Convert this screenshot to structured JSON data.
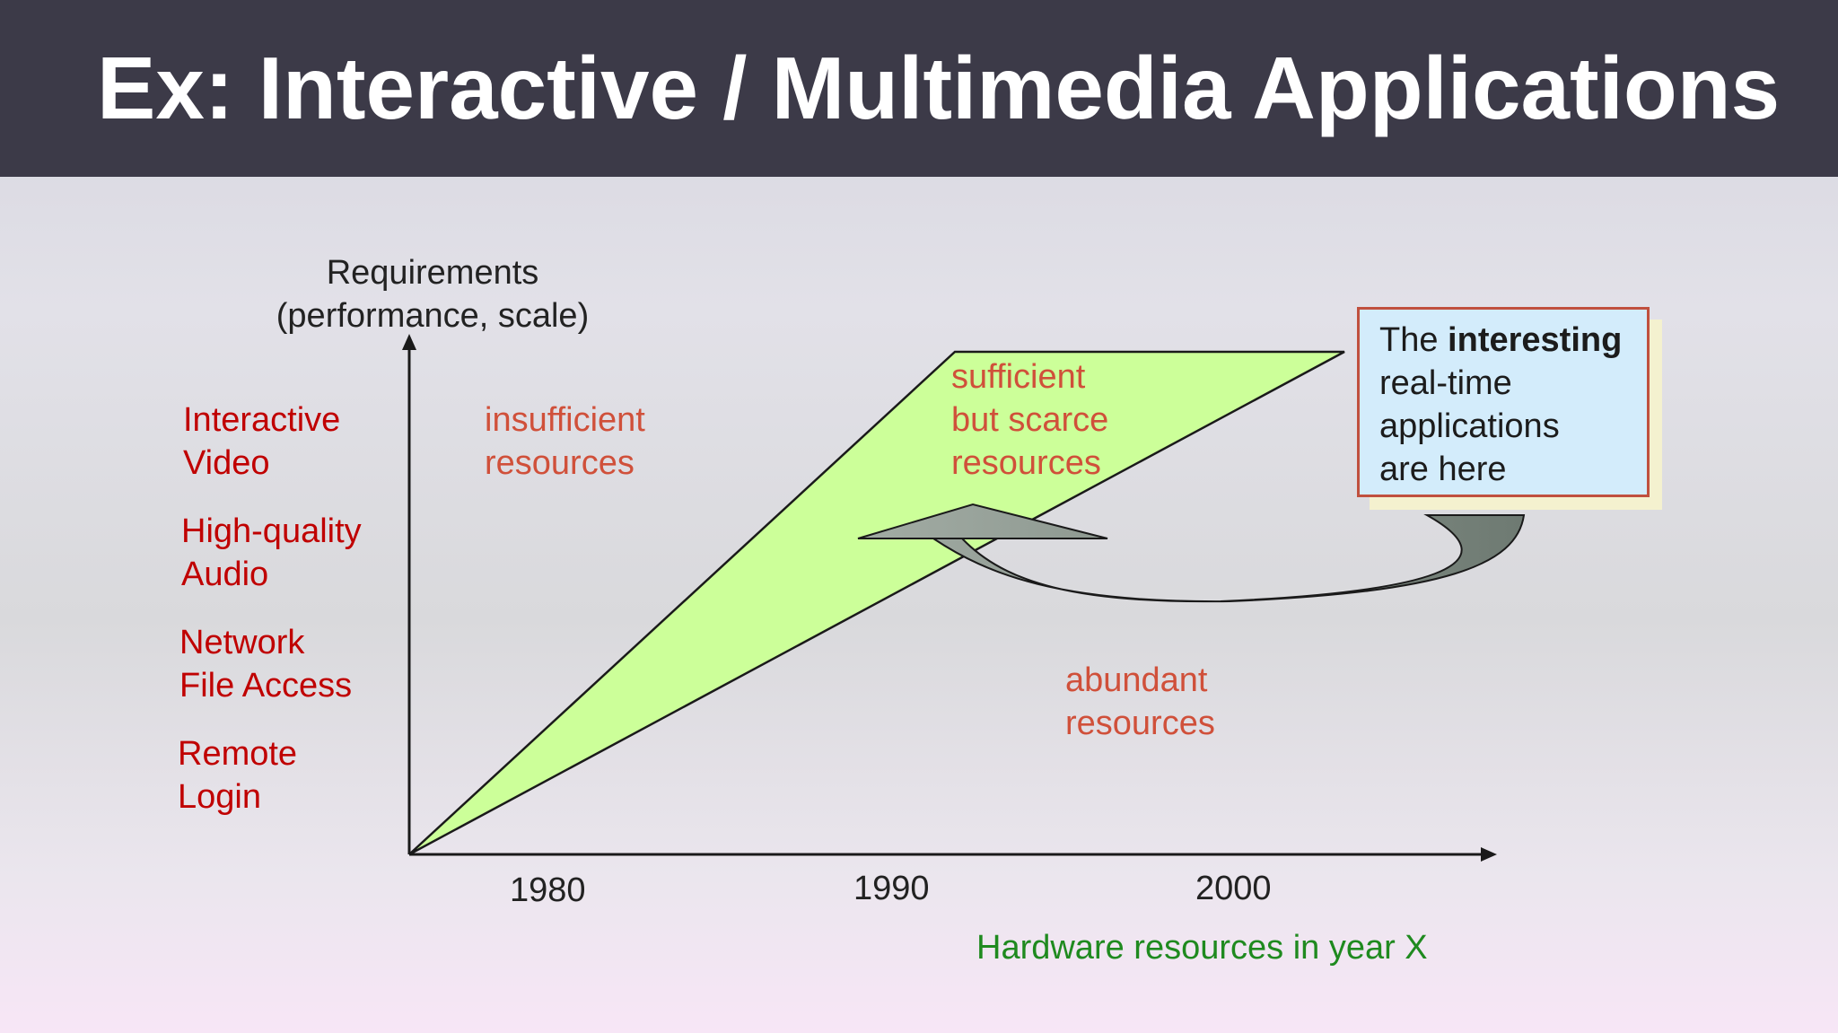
{
  "slide": {
    "title": "Ex: Interactive / Multimedia Applications"
  },
  "axes": {
    "y_label_line1": "Requirements",
    "y_label_line2": "(performance, scale)",
    "x_label": "Hardware resources in year X",
    "x_ticks": [
      "1980",
      "1990",
      "2000"
    ]
  },
  "requirements": [
    {
      "line1": "Interactive",
      "line2": "Video"
    },
    {
      "line1": "High-quality",
      "line2": "Audio"
    },
    {
      "line1": "Network",
      "line2": "File Access"
    },
    {
      "line1": "Remote",
      "line2": "Login"
    }
  ],
  "zones": {
    "insufficient": {
      "line1": "insufficient",
      "line2": "resources"
    },
    "sufficient": {
      "line1": "sufficient",
      "line2": "but scarce",
      "line3": "resources"
    },
    "abundant": {
      "line1": "abundant",
      "line2": "resources"
    }
  },
  "callout": {
    "prefix": "The ",
    "bold": "interesting",
    "line2": "real-time",
    "line3": "applications",
    "line4": "are here"
  },
  "colors": {
    "title_bar": "#3c3a48",
    "region_fill": "#ccff99",
    "requirement_text": "#c00000",
    "zone_text": "#d0503a",
    "x_label_text": "#1f8a1f",
    "callout_fill": "#d3ecfb",
    "callout_border": "#c0503e",
    "arrow_fill": "#7e8a80"
  }
}
